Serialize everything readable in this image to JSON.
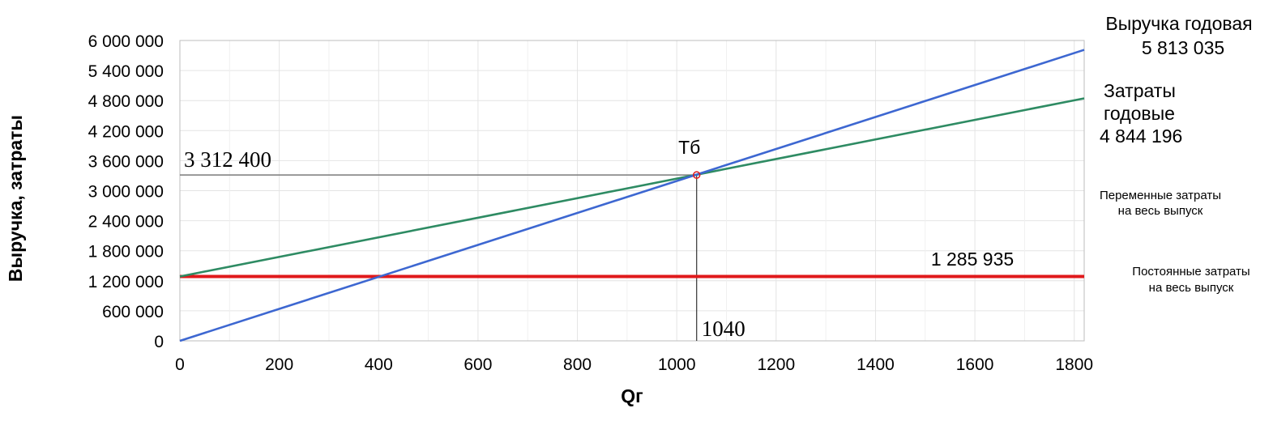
{
  "chart_data": {
    "type": "line",
    "xlabel": "Qг",
    "ylabel": "Выручка, затраты",
    "xlim": [
      0,
      1820
    ],
    "ylim": [
      0,
      6000000
    ],
    "x_ticks": [
      0,
      200,
      400,
      600,
      800,
      1000,
      1200,
      1400,
      1600,
      1800
    ],
    "y_ticks": [
      0,
      600000,
      1200000,
      1800000,
      2400000,
      3000000,
      3600000,
      4200000,
      4800000,
      5400000,
      6000000
    ],
    "y_tick_labels": [
      "0",
      "600 000",
      "1 200 000",
      "1 800 000",
      "2 400 000",
      "3 000 000",
      "3 600 000",
      "4 200 000",
      "4 800 000",
      "5 400 000",
      "6 000 000"
    ],
    "grid": true,
    "series": [
      {
        "key": "revenue",
        "x": [
          0,
          1820
        ],
        "y": [
          0,
          5813035
        ],
        "color": "#3d67d1"
      },
      {
        "key": "total_costs",
        "x": [
          0,
          1820
        ],
        "y": [
          1285935,
          4844196
        ],
        "color": "#2e8b63"
      },
      {
        "key": "fixed_costs",
        "x": [
          0,
          1820
        ],
        "y": [
          1285935,
          1285935
        ],
        "color": "#e0191b"
      }
    ],
    "break_even": {
      "x": 1040,
      "y": 3312400,
      "label": "Тб",
      "x_label": "1040",
      "y_label": "3 312 400"
    },
    "annotations": {
      "revenue_title": "Выручка годовая",
      "revenue_value": "5 813 035",
      "costs_title_1": "Затраты",
      "costs_title_2": "годовые",
      "costs_value": "4 844 196",
      "variable_1": "Переменные затраты",
      "variable_2": "на весь выпуск",
      "fixed_value": "1 285 935",
      "fixed_1": "Постоянные затраты",
      "fixed_2": "на весь выпуск"
    }
  }
}
